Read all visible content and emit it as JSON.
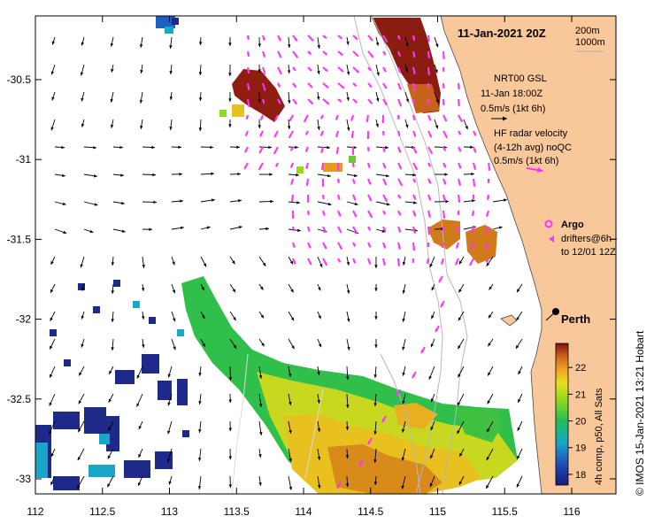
{
  "title": "11-Jan-2021 20Z",
  "isobaths": {
    "contour_a": "200m",
    "contour_b": "1000m"
  },
  "nrt_legend": {
    "line1": "NRT00 GSL",
    "line2": "11-Jan 18:00Z",
    "line3": "0.5m/s (1kt 6h)"
  },
  "hf_legend": {
    "line1": "HF radar velocity",
    "line2": "(4-12h avg) noQC",
    "line3": "0.5m/s (1kt 6h)"
  },
  "argo_label": "Argo",
  "drifter_legend": {
    "line1": "drifters@6h–",
    "line2": "to 12/01 12Z"
  },
  "city_label": "Perth",
  "colorbar": {
    "label": "4h comp, p50, All Sats",
    "ticks": [
      "22",
      "21",
      "20",
      "19",
      "18"
    ],
    "values": [
      22,
      21,
      20,
      19,
      18
    ],
    "min": 17.6,
    "max": 22.9
  },
  "credit": "© IMOS 15-Jan-2021 13:21 Hobart",
  "axes": {
    "lon_ticks": [
      "112",
      "112.5",
      "113",
      "113.5",
      "114",
      "114.5",
      "115",
      "115.5",
      "116"
    ],
    "lon_values": [
      112,
      112.5,
      113,
      113.5,
      114,
      114.5,
      115,
      115.5,
      116
    ],
    "lat_ticks": [
      "-30.5",
      "-31",
      "-31.5",
      "-32",
      "-32.5",
      "-33"
    ],
    "lat_values": [
      -30.5,
      -31,
      -31.5,
      -32,
      -32.5,
      -33
    ]
  },
  "colors": {
    "land": "#f8c79a",
    "hf_arrows": "#ff33ff",
    "model_arrows": "#000000"
  }
}
